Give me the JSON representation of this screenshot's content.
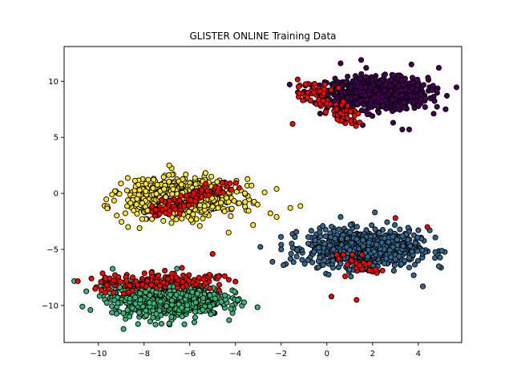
{
  "chart_data": {
    "type": "scatter",
    "title": "GLISTER ONLINE Training Data",
    "xlabel": "",
    "ylabel": "",
    "xlim": [
      -11.5,
      5.9
    ],
    "ylim": [
      -13.3,
      13.1
    ],
    "xticks": [
      -10,
      -8,
      -6,
      -4,
      -2,
      0,
      2,
      4
    ],
    "yticks": [
      -10,
      -5,
      0,
      5,
      10
    ],
    "grid": false,
    "point_edge_color": "#000000",
    "series": [
      {
        "color": "#440154",
        "cluster": {
          "center": [
            2.2,
            8.9
          ],
          "spread": [
            1.1,
            0.7
          ],
          "count": 900
        },
        "extra_points": [
          [
            4.9,
            11.2
          ],
          [
            4.6,
            9.2
          ],
          [
            3.7,
            11.5
          ],
          [
            3.3,
            5.7
          ],
          [
            4.3,
            7.7
          ],
          [
            0.6,
            11.6
          ],
          [
            1.5,
            11.9
          ],
          [
            2.9,
            6.3
          ],
          [
            3.6,
            5.7
          ]
        ]
      },
      {
        "color": "#31688e",
        "cluster": {
          "center": [
            1.6,
            -4.9
          ],
          "spread": [
            1.2,
            0.8
          ],
          "count": 900
        },
        "extra_points": [
          [
            -1.9,
            -6.4
          ],
          [
            -2.0,
            -5.0
          ],
          [
            -1.4,
            -3.9
          ],
          [
            4.2,
            -8.3
          ],
          [
            4.9,
            -6.5
          ],
          [
            3.8,
            -7.3
          ],
          [
            0.6,
            -2.1
          ],
          [
            2.1,
            -1.7
          ],
          [
            4.5,
            -3.3
          ]
        ]
      },
      {
        "color": "#35b779",
        "cluster": {
          "center": [
            -7.0,
            -9.4
          ],
          "spread": [
            1.2,
            0.75
          ],
          "count": 800
        },
        "extra_points": [
          [
            -10.7,
            -10.1
          ],
          [
            -8.9,
            -12.1
          ],
          [
            -4.2,
            -10.3
          ],
          [
            -3.9,
            -9.5
          ],
          [
            -7.5,
            -11.7
          ],
          [
            -6.9,
            -11.6
          ],
          [
            -5.8,
            -11.5
          ]
        ]
      },
      {
        "color": "#fde725",
        "cluster": {
          "center": [
            -6.3,
            -0.4
          ],
          "spread": [
            1.2,
            0.8
          ],
          "count": 800
        },
        "extra_points": [
          [
            -9.4,
            -0.1
          ],
          [
            -8.7,
            -3.0
          ],
          [
            -3.3,
            0.7
          ],
          [
            -2.2,
            0.4
          ],
          [
            -2.2,
            -2.1
          ],
          [
            -1.6,
            -1.3
          ],
          [
            -6.9,
            2.5
          ],
          [
            -4.3,
            -3.5
          ],
          [
            -8.2,
            -3.1
          ]
        ]
      },
      {
        "color": "#ff0000",
        "bands": [
          {
            "from": [
              -1.2,
              9.8
            ],
            "to": [
              1.2,
              6.3
            ],
            "jitter": 0.4,
            "count": 95
          },
          {
            "from": [
              -7.9,
              -1.8
            ],
            "to": [
              -4.1,
              0.9
            ],
            "jitter": 0.28,
            "count": 90
          },
          {
            "from": [
              -10.0,
              -8.2
            ],
            "to": [
              -4.4,
              -7.5
            ],
            "jitter": 0.42,
            "count": 140
          },
          {
            "from": [
              0.8,
              -5.6
            ],
            "to": [
              2.2,
              -6.9
            ],
            "jitter": 0.28,
            "count": 28
          }
        ],
        "extra_points": [
          [
            -1.5,
            6.2
          ],
          [
            -5.0,
            -5.4
          ],
          [
            0.2,
            -9.2
          ],
          [
            1.3,
            -9.5
          ],
          [
            4.4,
            -3.0
          ],
          [
            3.0,
            -2.2
          ],
          [
            0.8,
            -7.4
          ]
        ]
      }
    ]
  }
}
